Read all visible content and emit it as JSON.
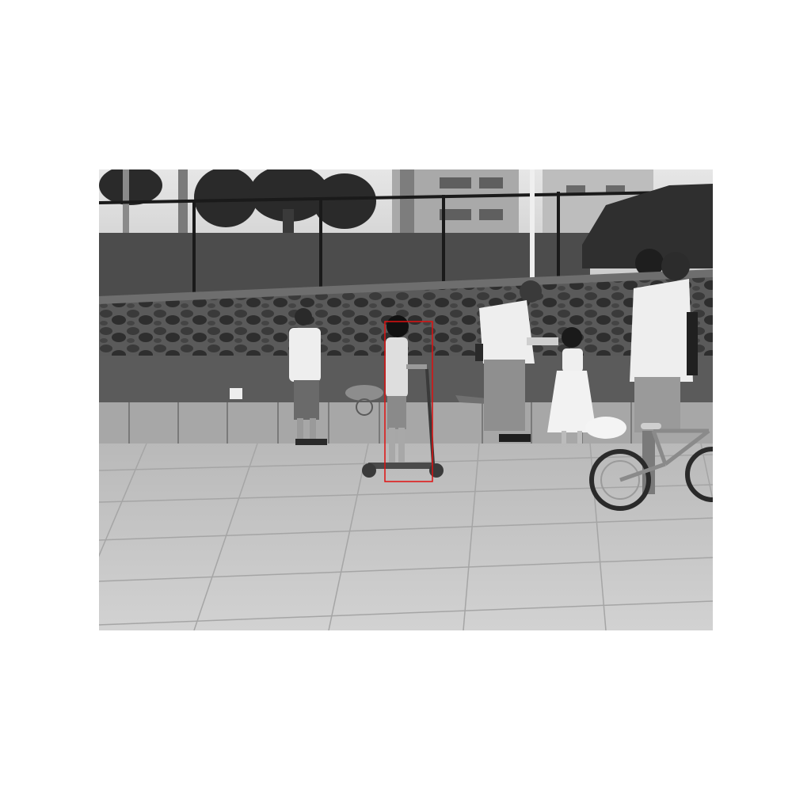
{
  "scene": {
    "description_kind": "grayscale photograph",
    "colors": {
      "annotation_box": "#e01010",
      "pavement": "#c9c9c9",
      "sky": "#dedede",
      "wall": "#4a4a4a"
    },
    "annotation": {
      "label": "",
      "target": "child-on-scooter"
    }
  }
}
